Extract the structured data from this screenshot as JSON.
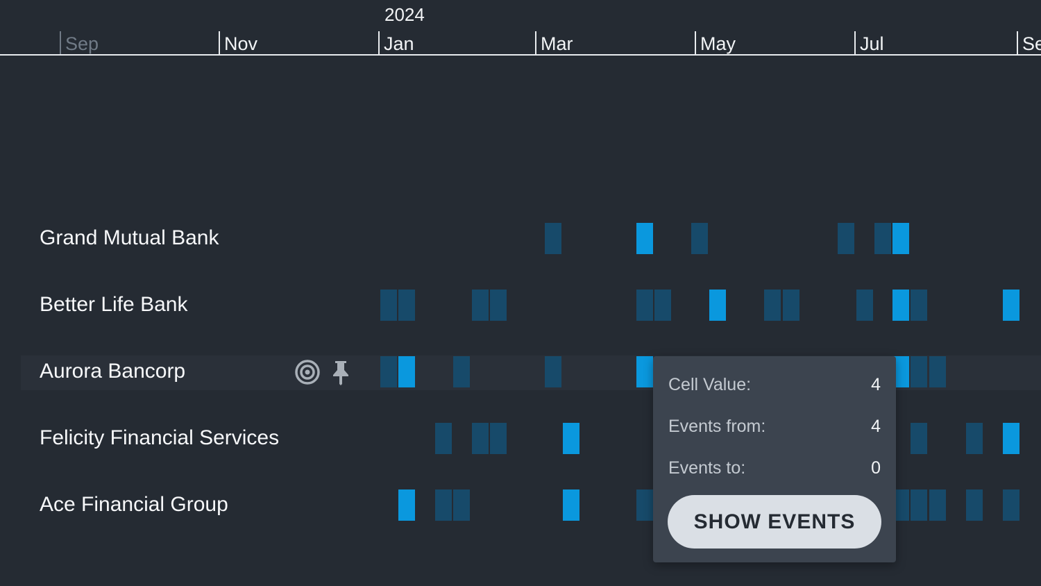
{
  "timeline": {
    "year": "2024",
    "months": [
      {
        "label": "Sep",
        "faded": true
      },
      {
        "label": "Nov",
        "faded": false
      },
      {
        "label": "Jan",
        "faded": false
      },
      {
        "label": "Mar",
        "faded": false
      },
      {
        "label": "May",
        "faded": false
      },
      {
        "label": "Jul",
        "faded": false
      },
      {
        "label": "Se",
        "faded": false
      }
    ]
  },
  "rows": [
    {
      "label": "Grand Mutual Bank",
      "highlighted": false
    },
    {
      "label": "Better Life Bank",
      "highlighted": false
    },
    {
      "label": "Aurora Bancorp",
      "highlighted": true,
      "icons": [
        "target-icon",
        "pin-icon"
      ]
    },
    {
      "label": "Felicity Financial Services",
      "highlighted": false
    },
    {
      "label": "Ace Financial Group",
      "highlighted": false
    }
  ],
  "colors": {
    "background": "#252b33",
    "cell_low": "#174a6a",
    "cell_high": "#0a98de",
    "tooltip_bg": "#3c444f",
    "button_bg": "#dadfe5"
  },
  "tooltip": {
    "cell_value_label": "Cell Value:",
    "cell_value": "4",
    "events_from_label": "Events from:",
    "events_from": "4",
    "events_to_label": "Events to:",
    "events_to": "0",
    "button_label": "SHOW EVENTS"
  }
}
